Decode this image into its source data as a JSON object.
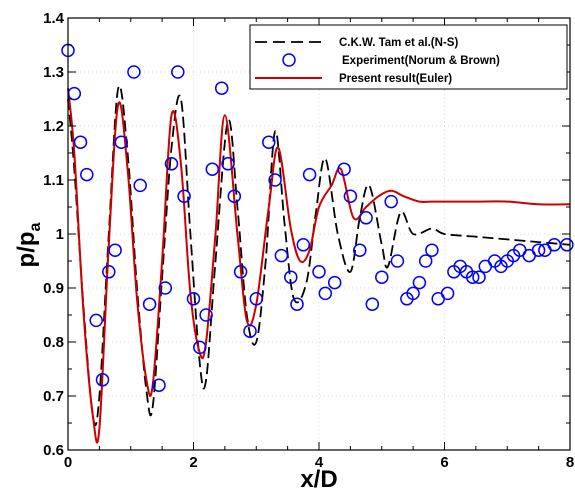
{
  "chart_data": {
    "type": "line",
    "title": "",
    "xlabel": "x/D",
    "ylabel_main": "p/p",
    "ylabel_sub": "a",
    "xlim": [
      0,
      8
    ],
    "ylim": [
      0.6,
      1.4
    ],
    "x_ticks": [
      0,
      2,
      4,
      6,
      8
    ],
    "x_tick_labels": [
      "0",
      "2",
      "4",
      "6",
      "8"
    ],
    "y_ticks": [
      0.6,
      0.7,
      0.8,
      0.9,
      1.0,
      1.1,
      1.2,
      1.3,
      1.4
    ],
    "y_tick_labels": [
      "0.6",
      "0.7",
      "0.8",
      "0.9",
      "1",
      "1.1",
      "1.2",
      "1.3",
      "1.4"
    ],
    "grid": true,
    "legend_position": "top-right",
    "series": [
      {
        "name": "C.K.W. Tam et al.(N-S)",
        "style": "dashed",
        "color": "#000000",
        "x": [
          0.0,
          0.1,
          0.25,
          0.4,
          0.5,
          0.65,
          0.8,
          0.95,
          1.1,
          1.25,
          1.35,
          1.5,
          1.65,
          1.8,
          1.95,
          2.1,
          2.2,
          2.35,
          2.55,
          2.7,
          2.85,
          3.0,
          3.15,
          3.3,
          3.45,
          3.6,
          3.8,
          3.95,
          4.1,
          4.3,
          4.5,
          4.65,
          4.8,
          5.0,
          5.1,
          5.3,
          5.5,
          5.8,
          6.0,
          6.5,
          7.0,
          7.5,
          8.0
        ],
        "y": [
          1.25,
          1.12,
          0.86,
          0.66,
          0.7,
          1.0,
          1.27,
          1.15,
          0.9,
          0.71,
          0.68,
          0.92,
          1.16,
          1.25,
          1.0,
          0.76,
          0.73,
          0.95,
          1.21,
          1.05,
          0.85,
          0.8,
          0.95,
          1.19,
          1.02,
          0.88,
          0.91,
          1.04,
          1.14,
          1.0,
          0.93,
          1.03,
          1.09,
          0.98,
          0.94,
          1.04,
          1.0,
          1.01,
          1.0,
          0.995,
          0.99,
          0.985,
          0.98
        ]
      },
      {
        "name": "Experiment(Norum & Brown)",
        "style": "circle",
        "color": "#0000ff",
        "x": [
          0.0,
          0.1,
          0.2,
          0.3,
          0.45,
          0.55,
          0.65,
          0.75,
          0.85,
          1.05,
          1.15,
          1.3,
          1.45,
          1.55,
          1.65,
          1.75,
          1.85,
          2.0,
          2.1,
          2.2,
          2.3,
          2.45,
          2.55,
          2.65,
          2.75,
          2.9,
          3.0,
          3.2,
          3.3,
          3.4,
          3.55,
          3.65,
          3.75,
          3.85,
          4.0,
          4.1,
          4.25,
          4.4,
          4.5,
          4.65,
          4.75,
          4.85,
          5.0,
          5.15,
          5.25,
          5.4,
          5.5,
          5.6,
          5.7,
          5.8,
          5.9,
          6.05,
          6.15,
          6.25,
          6.35,
          6.45,
          6.55,
          6.65,
          6.8,
          6.9,
          7.0,
          7.1,
          7.2,
          7.35,
          7.5,
          7.6,
          7.75,
          7.95
        ],
        "y": [
          1.34,
          1.26,
          1.17,
          1.11,
          0.84,
          0.73,
          0.93,
          0.97,
          1.17,
          1.3,
          1.09,
          0.87,
          0.72,
          0.9,
          1.13,
          1.3,
          1.07,
          0.88,
          0.79,
          0.85,
          1.12,
          1.27,
          1.13,
          1.07,
          0.93,
          0.82,
          0.88,
          1.17,
          1.1,
          0.96,
          0.92,
          0.87,
          0.98,
          1.11,
          0.93,
          0.89,
          0.91,
          1.12,
          1.07,
          0.97,
          1.03,
          0.87,
          0.92,
          1.06,
          0.95,
          0.88,
          0.89,
          0.91,
          0.95,
          0.97,
          0.88,
          0.89,
          0.93,
          0.94,
          0.93,
          0.92,
          0.92,
          0.94,
          0.95,
          0.94,
          0.95,
          0.96,
          0.97,
          0.96,
          0.97,
          0.97,
          0.98,
          0.98
        ]
      },
      {
        "name": "Present result(Euler)",
        "style": "solid",
        "color": "#cc0000",
        "x": [
          0.0,
          0.1,
          0.25,
          0.4,
          0.5,
          0.65,
          0.8,
          0.95,
          1.1,
          1.25,
          1.35,
          1.5,
          1.65,
          1.8,
          1.95,
          2.1,
          2.2,
          2.35,
          2.5,
          2.7,
          2.85,
          3.0,
          3.2,
          3.35,
          3.55,
          3.7,
          3.85,
          4.0,
          4.2,
          4.35,
          4.55,
          4.75,
          4.95,
          5.15,
          5.35,
          5.6,
          5.8,
          6.0,
          6.5,
          7.0,
          7.5,
          8.0
        ],
        "y": [
          1.27,
          1.15,
          0.85,
          0.66,
          0.64,
          0.98,
          1.24,
          1.12,
          0.88,
          0.73,
          0.72,
          0.95,
          1.22,
          1.13,
          0.89,
          0.78,
          0.8,
          1.0,
          1.22,
          1.0,
          0.84,
          0.87,
          1.05,
          1.16,
          1.01,
          0.95,
          0.97,
          1.05,
          1.09,
          1.12,
          1.03,
          1.05,
          1.07,
          1.08,
          1.07,
          1.06,
          1.06,
          1.06,
          1.06,
          1.06,
          1.055,
          1.055
        ]
      }
    ]
  }
}
